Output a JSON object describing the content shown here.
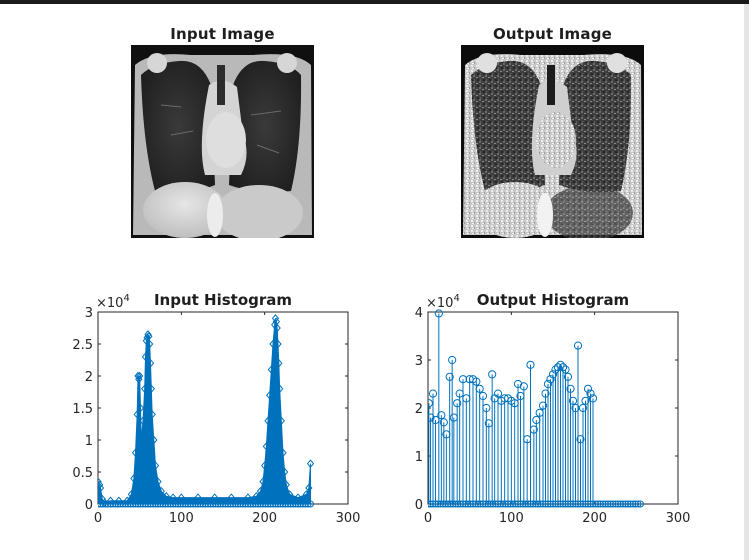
{
  "figure": {
    "panels": {
      "input_image": {
        "title": "Input Image"
      },
      "output_image": {
        "title": "Output Image"
      }
    }
  },
  "colors": {
    "series": "#0072BD",
    "axes": "#262626",
    "background": "#ffffff"
  },
  "chart_data": [
    {
      "type": "bar",
      "title": "Input Histogram",
      "xlabel": "",
      "ylabel": "",
      "xlim": [
        0,
        300
      ],
      "ylim": [
        0,
        3
      ],
      "y_exponent_label": "×10",
      "y_exponent": "4",
      "xticks": [
        "0",
        "100",
        "200",
        "300"
      ],
      "yticks": [
        "0",
        "0.5",
        "1",
        "1.5",
        "2",
        "2.5",
        "3"
      ],
      "grid": false,
      "points": [
        [
          0,
          0.35
        ],
        [
          2,
          0.3
        ],
        [
          3,
          0.25
        ],
        [
          5,
          0.08
        ],
        [
          8,
          0.02
        ],
        [
          15,
          0.05
        ],
        [
          25,
          0.05
        ],
        [
          35,
          0.05
        ],
        [
          40,
          0.15
        ],
        [
          43,
          0.4
        ],
        [
          45,
          0.8
        ],
        [
          47,
          1.4
        ],
        [
          48,
          2.0
        ],
        [
          49,
          1.95
        ],
        [
          50,
          2.0
        ],
        [
          51,
          1.5
        ],
        [
          52,
          1.0
        ],
        [
          54,
          1.3
        ],
        [
          56,
          1.8
        ],
        [
          57,
          2.3
        ],
        [
          58,
          2.55
        ],
        [
          59,
          2.6
        ],
        [
          60,
          2.65
        ],
        [
          61,
          2.62
        ],
        [
          62,
          2.5
        ],
        [
          63,
          2.2
        ],
        [
          64,
          1.8
        ],
        [
          65,
          1.4
        ],
        [
          67,
          1.0
        ],
        [
          69,
          0.6
        ],
        [
          72,
          0.35
        ],
        [
          76,
          0.2
        ],
        [
          82,
          0.12
        ],
        [
          90,
          0.1
        ],
        [
          100,
          0.1
        ],
        [
          120,
          0.1
        ],
        [
          140,
          0.1
        ],
        [
          160,
          0.1
        ],
        [
          180,
          0.1
        ],
        [
          190,
          0.12
        ],
        [
          195,
          0.2
        ],
        [
          198,
          0.35
        ],
        [
          200,
          0.6
        ],
        [
          202,
          0.9
        ],
        [
          204,
          1.3
        ],
        [
          206,
          1.7
        ],
        [
          208,
          2.1
        ],
        [
          210,
          2.5
        ],
        [
          212,
          2.8
        ],
        [
          213,
          2.9
        ],
        [
          214,
          2.85
        ],
        [
          215,
          2.75
        ],
        [
          216,
          2.5
        ],
        [
          217,
          2.2
        ],
        [
          218,
          1.8
        ],
        [
          220,
          1.3
        ],
        [
          222,
          0.8
        ],
        [
          224,
          0.5
        ],
        [
          226,
          0.3
        ],
        [
          230,
          0.15
        ],
        [
          240,
          0.1
        ],
        [
          250,
          0.15
        ],
        [
          253,
          0.25
        ],
        [
          255,
          0.63
        ]
      ],
      "max_value": 2.9
    },
    {
      "type": "stem",
      "title": "Output Histogram",
      "xlabel": "",
      "ylabel": "",
      "xlim": [
        0,
        300
      ],
      "ylim": [
        0,
        4
      ],
      "y_exponent_label": "×10",
      "y_exponent": "4",
      "xticks": [
        "0",
        "100",
        "200",
        "300"
      ],
      "yticks": [
        "0",
        "1",
        "2",
        "3",
        "4"
      ],
      "grid": false,
      "points": [
        [
          1,
          2.1
        ],
        [
          3,
          1.8
        ],
        [
          6,
          2.3
        ],
        [
          9,
          1.75
        ],
        [
          13,
          3.97
        ],
        [
          16,
          1.85
        ],
        [
          19,
          1.7
        ],
        [
          22,
          1.45
        ],
        [
          26,
          2.65
        ],
        [
          29,
          3.0
        ],
        [
          31,
          1.8
        ],
        [
          35,
          2.1
        ],
        [
          38,
          2.3
        ],
        [
          42,
          2.6
        ],
        [
          46,
          2.2
        ],
        [
          50,
          2.6
        ],
        [
          54,
          2.6
        ],
        [
          58,
          2.55
        ],
        [
          62,
          2.4
        ],
        [
          66,
          2.25
        ],
        [
          70,
          2.0
        ],
        [
          73,
          1.68
        ],
        [
          77,
          2.7
        ],
        [
          80,
          2.2
        ],
        [
          84,
          2.3
        ],
        [
          88,
          2.15
        ],
        [
          92,
          2.2
        ],
        [
          96,
          2.2
        ],
        [
          100,
          2.15
        ],
        [
          104,
          2.1
        ],
        [
          108,
          2.5
        ],
        [
          111,
          2.25
        ],
        [
          115,
          2.45
        ],
        [
          119,
          1.35
        ],
        [
          123,
          2.9
        ],
        [
          127,
          1.55
        ],
        [
          130,
          1.75
        ],
        [
          134,
          1.9
        ],
        [
          138,
          2.05
        ],
        [
          141,
          2.3
        ],
        [
          144,
          2.5
        ],
        [
          147,
          2.6
        ],
        [
          150,
          2.7
        ],
        [
          153,
          2.8
        ],
        [
          156,
          2.85
        ],
        [
          159,
          2.9
        ],
        [
          162,
          2.85
        ],
        [
          165,
          2.8
        ],
        [
          168,
          2.65
        ],
        [
          171,
          2.4
        ],
        [
          174,
          2.15
        ],
        [
          177,
          2.0
        ],
        [
          180,
          3.3
        ],
        [
          183,
          1.35
        ],
        [
          186,
          2.0
        ],
        [
          189,
          2.15
        ],
        [
          192,
          2.4
        ],
        [
          195,
          2.3
        ],
        [
          198,
          2.2
        ]
      ]
    }
  ]
}
